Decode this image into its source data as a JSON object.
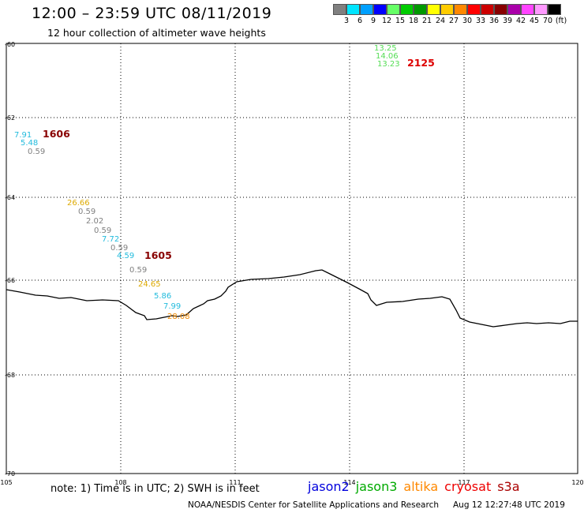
{
  "header": {
    "title": "12:00 – 23:59 UTC 08/11/2019",
    "subtitle": "12 hour collection of altimeter wave heights"
  },
  "legend": {
    "colors": [
      "#808080",
      "#00e5ff",
      "#00a0ff",
      "#0000ff",
      "#66ff66",
      "#00cc00",
      "#009900",
      "#ffff00",
      "#ffcc00",
      "#ff8800",
      "#ff0000",
      "#cc0000",
      "#880000",
      "#aa00aa",
      "#ff44ff",
      "#ff99ff",
      "#000000"
    ],
    "labels": [
      "3",
      "6",
      "9",
      "12",
      "15",
      "18",
      "21",
      "24",
      "27",
      "30",
      "33",
      "36",
      "39",
      "42",
      "45",
      "70",
      "(ft)"
    ]
  },
  "map": {
    "lat_labels": [
      "-60",
      "-62",
      "-64",
      "-66",
      "-68",
      "-70"
    ],
    "lon_labels": [
      "105",
      "108",
      "111",
      "114",
      "117",
      "120"
    ]
  },
  "observations": [
    {
      "text": "13.25",
      "color": "#55dd55"
    },
    {
      "text": "14.06",
      "color": "#55dd55"
    },
    {
      "text": "13.23",
      "color": "#55dd55"
    },
    {
      "text": "7.91",
      "color": "#22bbdd"
    },
    {
      "text": "5.48",
      "color": "#22bbdd"
    },
    {
      "text": "0.59",
      "color": "#808080"
    },
    {
      "text": "26.66",
      "color": "#ddaa00"
    },
    {
      "text": "0.59",
      "color": "#808080"
    },
    {
      "text": "2.02",
      "color": "#808080"
    },
    {
      "text": "0.59",
      "color": "#808080"
    },
    {
      "text": "7.72",
      "color": "#22bbdd"
    },
    {
      "text": "0.59",
      "color": "#808080"
    },
    {
      "text": "4.59",
      "color": "#22bbdd"
    },
    {
      "text": "0.59",
      "color": "#808080"
    },
    {
      "text": "24.65",
      "color": "#ddaa00"
    },
    {
      "text": "5.86",
      "color": "#22bbdd"
    },
    {
      "text": "7.99",
      "color": "#22bbdd"
    },
    {
      "text": "28.08",
      "color": "#ee8800"
    }
  ],
  "passes": [
    {
      "text": "2125",
      "color": "#dd0000"
    },
    {
      "text": "1606",
      "color": "#880000"
    },
    {
      "text": "1605",
      "color": "#880000"
    }
  ],
  "footer": {
    "note": "note:  1) Time is in UTC;  2) SWH is in feet",
    "satellites": [
      {
        "name": "jason2",
        "color": "#0000dd"
      },
      {
        "name": "jason3",
        "color": "#00aa00"
      },
      {
        "name": "altika",
        "color": "#ff8800"
      },
      {
        "name": "cryosat",
        "color": "#ee0000"
      },
      {
        "name": "s3a",
        "color": "#aa0000"
      }
    ],
    "credit": "NOAA/NESDIS Center for Satellite Applications and Research",
    "timestamp": "Aug 12 12:27:48 UTC 2019"
  }
}
